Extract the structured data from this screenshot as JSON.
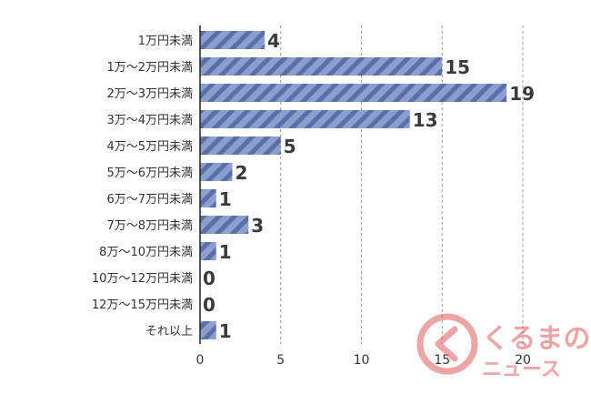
{
  "chart_data": {
    "type": "bar",
    "orientation": "horizontal",
    "categories": [
      "1万円未満",
      "1万～2万円未満",
      "2万～3万円未満",
      "3万～4万円未満",
      "4万～5万円未満",
      "5万～6万円未満",
      "6万～7万円未満",
      "7万～8万円未満",
      "8万～10万円未満",
      "10万～12万円未満",
      "12万～15万円未満",
      "それ以上"
    ],
    "values": [
      4,
      15,
      19,
      13,
      5,
      2,
      1,
      3,
      1,
      0,
      0,
      1
    ],
    "xlim": [
      0,
      20
    ],
    "xticks": [
      0,
      5,
      10,
      15,
      20
    ],
    "title": "",
    "xlabel": "",
    "ylabel": "",
    "grid": "vertical dashed",
    "colors": {
      "bar_fill": "#8a9fd0",
      "bar_stripe": "#5a6ea8",
      "axis": "#222222",
      "grid": "#999999",
      "value_text": "#3a3a3a"
    }
  },
  "watermark": {
    "text_top": "くるまの",
    "text_bottom": "ニュース",
    "color": "#e05a5a"
  }
}
